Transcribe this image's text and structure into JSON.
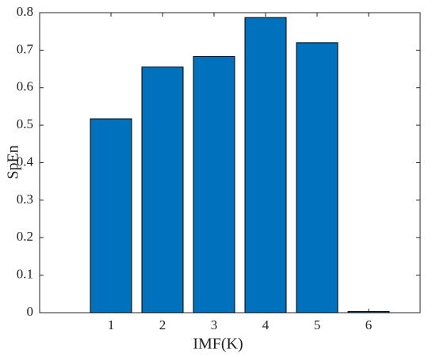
{
  "chart_data": {
    "type": "bar",
    "x_label": "IMF(K)",
    "y_label": "SpEn",
    "categories": [
      "1",
      "2",
      "3",
      "4",
      "5",
      "6"
    ],
    "values": [
      0.517,
      0.655,
      0.683,
      0.787,
      0.72,
      0.003
    ],
    "color": "#0072bd",
    "ylim": [
      0,
      0.8
    ],
    "yticks": [
      0,
      0.1,
      0.2,
      0.3,
      0.4,
      0.5,
      0.6,
      0.7,
      0.8
    ]
  }
}
